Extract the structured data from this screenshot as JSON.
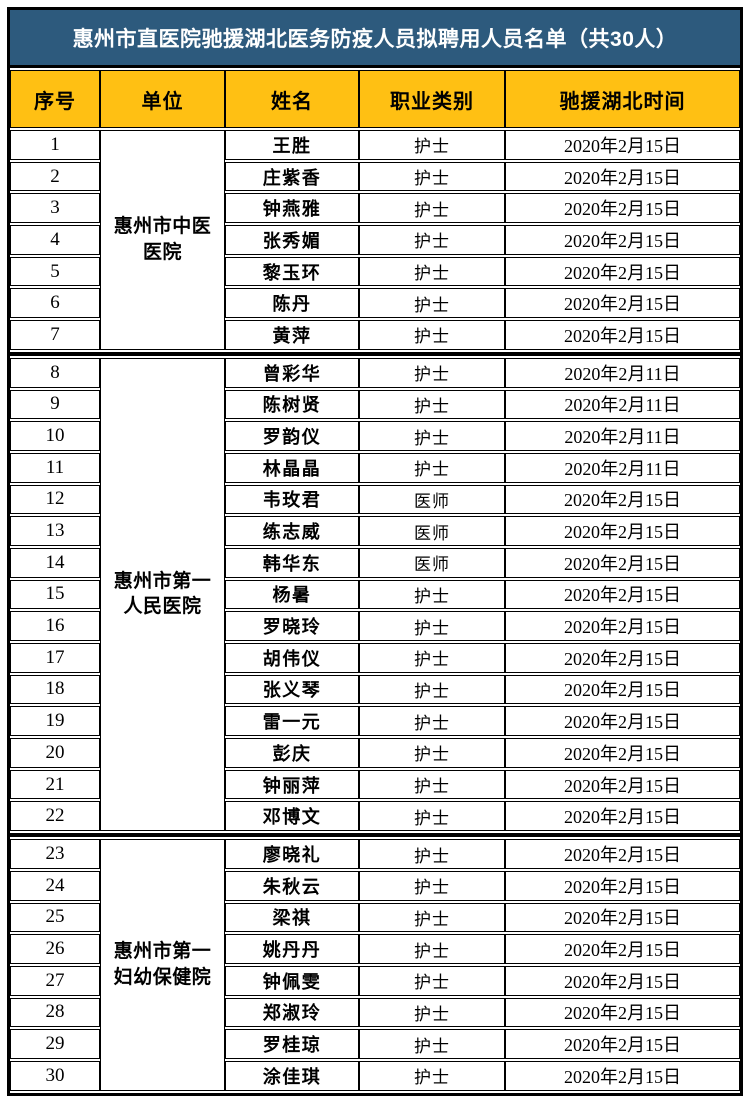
{
  "title": "惠州市直医院驰援湖北医务防疫人员拟聘用人员名单（共30人）",
  "columns": [
    "序号",
    "单位",
    "姓名",
    "职业类别",
    "驰援湖北时间"
  ],
  "colors": {
    "title_bg": "#2D5A7D",
    "title_text": "#FFFFFF",
    "header_bg": "#FFC013",
    "border": "#000000",
    "cell_bg": "#FFFFFF",
    "body_text": "#000000"
  },
  "groups": [
    {
      "unit": "惠州市中医医院",
      "rows": [
        {
          "no": "1",
          "name": "王胜",
          "job": "护士",
          "date": "2020年2月15日"
        },
        {
          "no": "2",
          "name": "庄紫香",
          "job": "护士",
          "date": "2020年2月15日"
        },
        {
          "no": "3",
          "name": "钟燕雅",
          "job": "护士",
          "date": "2020年2月15日"
        },
        {
          "no": "4",
          "name": "张秀媚",
          "job": "护士",
          "date": "2020年2月15日"
        },
        {
          "no": "5",
          "name": "黎玉环",
          "job": "护士",
          "date": "2020年2月15日"
        },
        {
          "no": "6",
          "name": "陈丹",
          "job": "护士",
          "date": "2020年2月15日"
        },
        {
          "no": "7",
          "name": "黄萍",
          "job": "护士",
          "date": "2020年2月15日"
        }
      ]
    },
    {
      "unit": "惠州市第一人民医院",
      "rows": [
        {
          "no": "8",
          "name": "曾彩华",
          "job": "护士",
          "date": "2020年2月11日"
        },
        {
          "no": "9",
          "name": "陈树贤",
          "job": "护士",
          "date": "2020年2月11日"
        },
        {
          "no": "10",
          "name": "罗韵仪",
          "job": "护士",
          "date": "2020年2月11日"
        },
        {
          "no": "11",
          "name": "林晶晶",
          "job": "护士",
          "date": "2020年2月11日"
        },
        {
          "no": "12",
          "name": "韦玫君",
          "job": "医师",
          "date": "2020年2月15日"
        },
        {
          "no": "13",
          "name": "练志威",
          "job": "医师",
          "date": "2020年2月15日"
        },
        {
          "no": "14",
          "name": "韩华东",
          "job": "医师",
          "date": "2020年2月15日"
        },
        {
          "no": "15",
          "name": "杨暑",
          "job": "护士",
          "date": "2020年2月15日"
        },
        {
          "no": "16",
          "name": "罗晓玲",
          "job": "护士",
          "date": "2020年2月15日"
        },
        {
          "no": "17",
          "name": "胡伟仪",
          "job": "护士",
          "date": "2020年2月15日"
        },
        {
          "no": "18",
          "name": "张义琴",
          "job": "护士",
          "date": "2020年2月15日"
        },
        {
          "no": "19",
          "name": "雷一元",
          "job": "护士",
          "date": "2020年2月15日"
        },
        {
          "no": "20",
          "name": "彭庆",
          "job": "护士",
          "date": "2020年2月15日"
        },
        {
          "no": "21",
          "name": "钟丽萍",
          "job": "护士",
          "date": "2020年2月15日"
        },
        {
          "no": "22",
          "name": "邓博文",
          "job": "护士",
          "date": "2020年2月15日"
        }
      ]
    },
    {
      "unit": "惠州市第一妇幼保健院",
      "rows": [
        {
          "no": "23",
          "name": "廖晓礼",
          "job": "护士",
          "date": "2020年2月15日"
        },
        {
          "no": "24",
          "name": "朱秋云",
          "job": "护士",
          "date": "2020年2月15日"
        },
        {
          "no": "25",
          "name": "梁祺",
          "job": "护士",
          "date": "2020年2月15日"
        },
        {
          "no": "26",
          "name": "姚丹丹",
          "job": "护士",
          "date": "2020年2月15日"
        },
        {
          "no": "27",
          "name": "钟佩雯",
          "job": "护士",
          "date": "2020年2月15日"
        },
        {
          "no": "28",
          "name": "郑淑玲",
          "job": "护士",
          "date": "2020年2月15日"
        },
        {
          "no": "29",
          "name": "罗桂琼",
          "job": "护士",
          "date": "2020年2月15日"
        },
        {
          "no": "30",
          "name": "涂佳琪",
          "job": "护士",
          "date": "2020年2月15日"
        }
      ]
    }
  ]
}
